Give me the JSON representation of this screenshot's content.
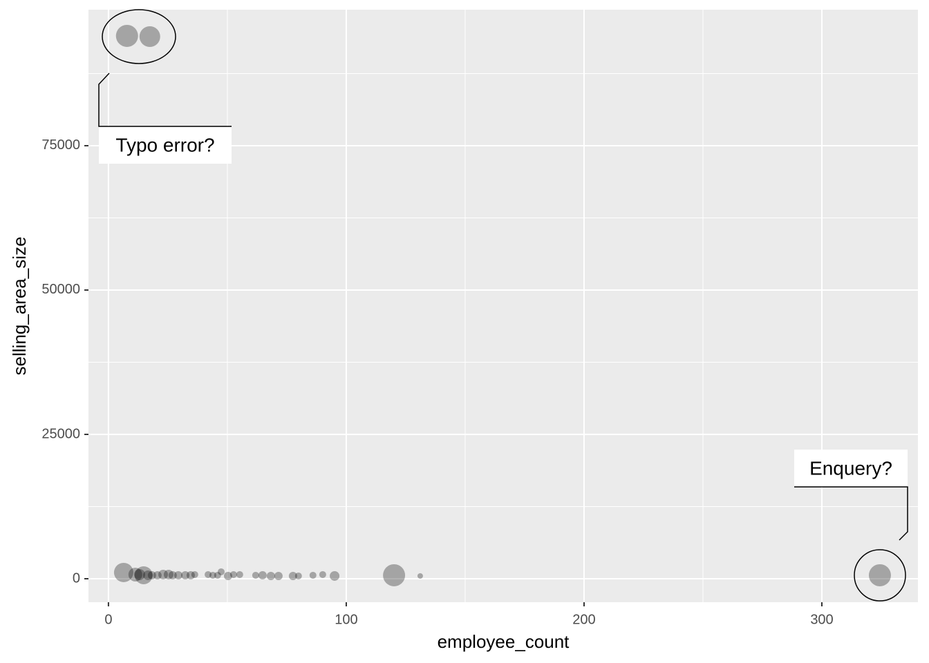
{
  "chart_data": {
    "type": "scatter",
    "xlabel": "employee_count",
    "ylabel": "selling_area_size",
    "x": [
      7.8,
      17.4,
      6.4,
      11.3,
      14.8,
      13.1,
      16.6,
      18.3,
      20.6,
      23.0,
      25.3,
      27.0,
      29.4,
      32.3,
      34.6,
      36.3,
      41.9,
      43.9,
      45.9,
      47.4,
      50.3,
      52.6,
      55.2,
      61.9,
      64.8,
      68.3,
      71.5,
      77.6,
      79.9,
      86.0,
      90.1,
      95.1,
      120.1,
      131.1,
      324.4
    ],
    "y": [
      94020,
      93900,
      1080,
      720,
      600,
      720,
      600,
      600,
      600,
      720,
      720,
      600,
      600,
      600,
      600,
      720,
      720,
      600,
      600,
      1200,
      480,
      720,
      720,
      600,
      600,
      480,
      480,
      480,
      480,
      600,
      720,
      480,
      600,
      480,
      600
    ],
    "sizes": [
      16,
      15,
      14,
      10,
      13,
      8,
      7,
      6,
      6,
      7,
      7,
      6,
      6,
      6,
      6,
      5,
      5,
      5,
      5,
      5,
      6,
      5,
      5,
      5,
      6,
      6,
      6,
      6,
      5,
      5,
      5,
      7,
      16,
      4,
      16
    ],
    "color": "#000000",
    "xlim": [
      -8.4,
      340.4
    ],
    "ylim": [
      -4070,
      98560
    ],
    "xticks": [
      0,
      100,
      200,
      300
    ],
    "yticks": [
      0,
      25000,
      50000,
      75000
    ],
    "xminor": [
      50,
      150,
      250
    ],
    "yminor": [
      12500,
      37500,
      62500,
      87500
    ],
    "grid": true,
    "annotations": [
      "Typo error?",
      "Enquery?"
    ]
  }
}
